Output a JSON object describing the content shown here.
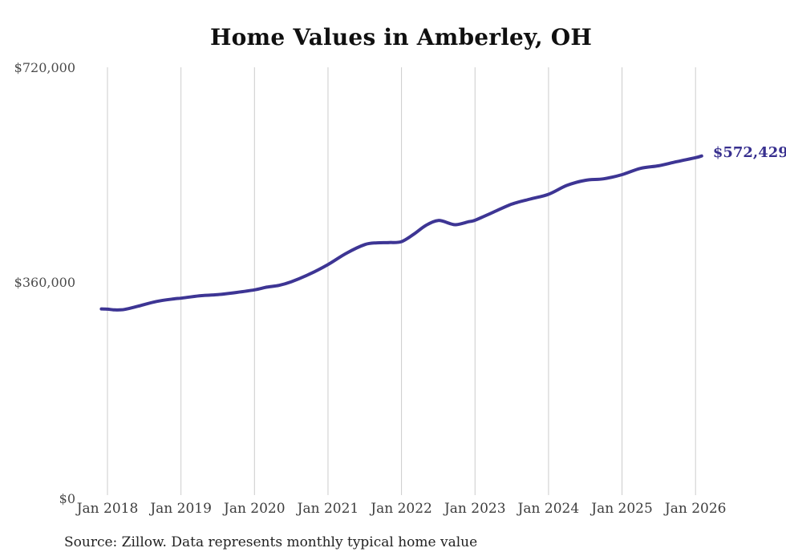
{
  "title": "Home Values in Amberley, OH",
  "source_note": "Source: Zillow. Data represents monthly typical home value",
  "end_label": "$572,429",
  "colors": {
    "line": "#3d3594",
    "end_label": "#38308f",
    "gridline": "#cccccc",
    "title": "#101010",
    "x_tick_label": "#3d3d3d",
    "y_tick_label": "#4b4b4b",
    "source": "#222222",
    "background": "#ffffff"
  },
  "chart_data": {
    "type": "line",
    "title": "Home Values in Amberley, OH",
    "xlabel": "",
    "ylabel": "",
    "units": "USD",
    "grid": "vertical-only",
    "legend": "none",
    "ylim": [
      0,
      720000
    ],
    "y_ticks": [
      0,
      360000,
      720000
    ],
    "y_tick_labels": [
      "$0",
      "$360,000",
      "$720,000"
    ],
    "x_tick_labels": [
      "Jan 2018",
      "Jan 2019",
      "Jan 2020",
      "Jan 2021",
      "Jan 2022",
      "Jan 2023",
      "Jan 2024",
      "Jan 2025",
      "Jan 2026"
    ],
    "final_value": 572429,
    "final_value_label": "$572,429",
    "series": [
      {
        "name": "Typical home value",
        "points": [
          {
            "date": "2017-12",
            "value": 315500
          },
          {
            "date": "2018-01",
            "value": 315000
          },
          {
            "date": "2018-02",
            "value": 314000
          },
          {
            "date": "2018-03",
            "value": 313800
          },
          {
            "date": "2018-04",
            "value": 315000
          },
          {
            "date": "2018-06",
            "value": 320000
          },
          {
            "date": "2018-09",
            "value": 328000
          },
          {
            "date": "2018-12",
            "value": 332500
          },
          {
            "date": "2019-01",
            "value": 333500
          },
          {
            "date": "2019-04",
            "value": 337500
          },
          {
            "date": "2019-07",
            "value": 339500
          },
          {
            "date": "2019-10",
            "value": 343000
          },
          {
            "date": "2020-01",
            "value": 347500
          },
          {
            "date": "2020-03",
            "value": 352000
          },
          {
            "date": "2020-05",
            "value": 355000
          },
          {
            "date": "2020-07",
            "value": 361000
          },
          {
            "date": "2020-10",
            "value": 374000
          },
          {
            "date": "2021-01",
            "value": 390000
          },
          {
            "date": "2021-04",
            "value": 409000
          },
          {
            "date": "2021-07",
            "value": 423500
          },
          {
            "date": "2021-09",
            "value": 426500
          },
          {
            "date": "2021-11",
            "value": 427000
          },
          {
            "date": "2022-01",
            "value": 428500
          },
          {
            "date": "2022-03",
            "value": 441000
          },
          {
            "date": "2022-05",
            "value": 456000
          },
          {
            "date": "2022-07",
            "value": 464000
          },
          {
            "date": "2022-09",
            "value": 458500
          },
          {
            "date": "2022-10",
            "value": 457000
          },
          {
            "date": "2022-12",
            "value": 462000
          },
          {
            "date": "2023-01",
            "value": 464500
          },
          {
            "date": "2023-04",
            "value": 478000
          },
          {
            "date": "2023-07",
            "value": 491500
          },
          {
            "date": "2023-10",
            "value": 500000
          },
          {
            "date": "2024-01",
            "value": 508000
          },
          {
            "date": "2024-04",
            "value": 523000
          },
          {
            "date": "2024-07",
            "value": 531500
          },
          {
            "date": "2024-10",
            "value": 534000
          },
          {
            "date": "2025-01",
            "value": 541000
          },
          {
            "date": "2025-04",
            "value": 551500
          },
          {
            "date": "2025-07",
            "value": 556000
          },
          {
            "date": "2025-10",
            "value": 563000
          },
          {
            "date": "2026-01",
            "value": 569500
          },
          {
            "date": "2026-02",
            "value": 572429
          }
        ]
      }
    ]
  }
}
